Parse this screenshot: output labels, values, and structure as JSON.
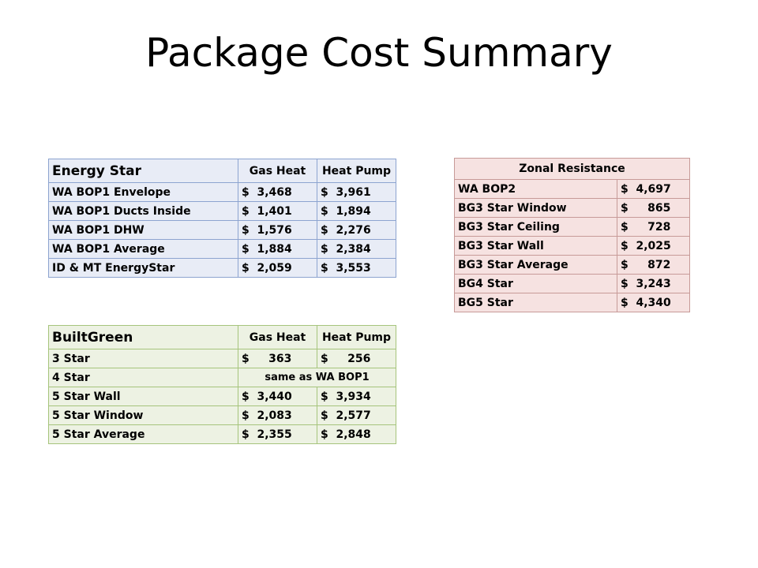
{
  "slide": {
    "title": "Package Cost Summary"
  },
  "energy_star": {
    "header": {
      "label": "Energy Star",
      "col1": "Gas Heat",
      "col2": "Heat Pump"
    },
    "rows": [
      {
        "label": "WA BOP1 Envelope",
        "gas": "$  3,468",
        "pump": "$  3,961"
      },
      {
        "label": "WA BOP1 Ducts Inside",
        "gas": "$  1,401",
        "pump": "$  1,894"
      },
      {
        "label": "WA BOP1 DHW",
        "gas": "$  1,576",
        "pump": "$  2,276"
      },
      {
        "label": "WA BOP1 Average",
        "gas": "$  1,884",
        "pump": "$  2,384"
      },
      {
        "label": "ID & MT EnergyStar",
        "gas": "$  2,059",
        "pump": "$  3,553"
      }
    ]
  },
  "built_green": {
    "header": {
      "label": "BuiltGreen",
      "col1": "Gas Heat",
      "col2": "Heat Pump"
    },
    "row_3star": {
      "label": "3 Star",
      "gas": "$     363",
      "pump": "$     256"
    },
    "row_4star": {
      "label": "4 Star",
      "merged": "same as WA BOP1"
    },
    "rows": [
      {
        "label": "5 Star Wall",
        "gas": "$  3,440",
        "pump": "$  3,934"
      },
      {
        "label": "5 Star Window",
        "gas": "$  2,083",
        "pump": "$  2,577"
      },
      {
        "label": "5 Star Average",
        "gas": "$  2,355",
        "pump": "$  2,848"
      }
    ]
  },
  "zonal": {
    "header": "Zonal Resistance",
    "rows": [
      {
        "label": "WA BOP2",
        "value": "$  4,697"
      },
      {
        "label": "BG3 Star Window",
        "value": "$     865"
      },
      {
        "label": "BG3 Star Ceiling",
        "value": "$     728"
      },
      {
        "label": "BG3 Star Wall",
        "value": "$  2,025"
      },
      {
        "label": "BG3 Star Average",
        "value": "$     872"
      },
      {
        "label": "BG4 Star",
        "value": "$  3,243"
      },
      {
        "label": "BG5 Star",
        "value": "$  4,340"
      }
    ]
  }
}
